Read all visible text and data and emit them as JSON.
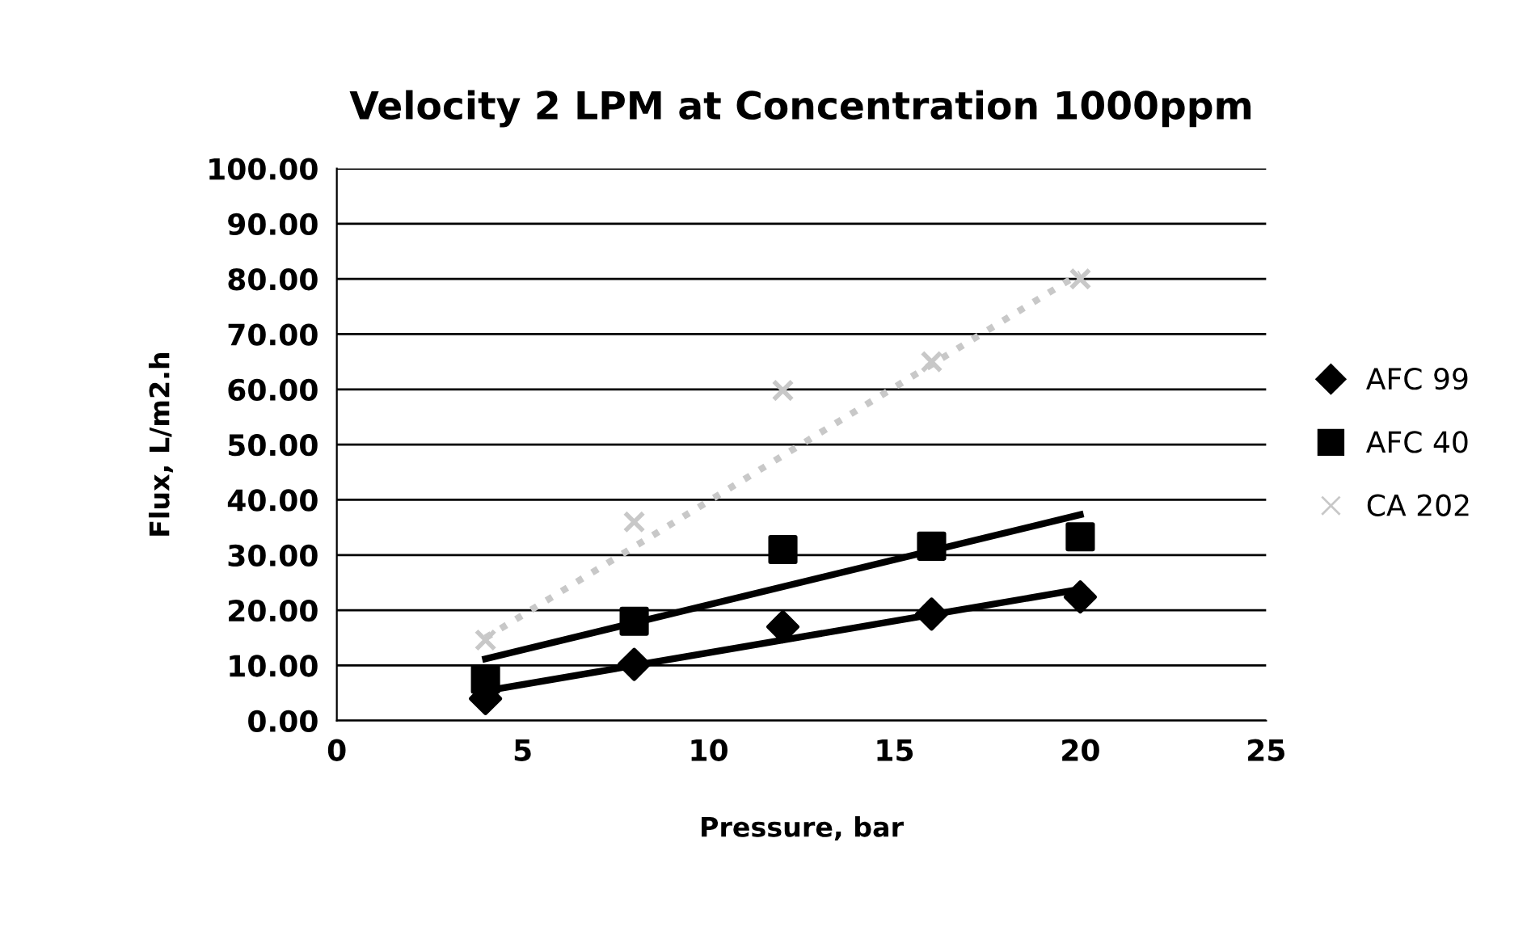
{
  "chart_data": {
    "type": "scatter",
    "title": "Velocity 2 LPM at Concentration 1000ppm",
    "xlabel": "Pressure, bar",
    "ylabel": "Flux, L/m2.h",
    "series": [
      {
        "name": "AFC 99",
        "color": "#000000",
        "marker": "diamond",
        "x": [
          4,
          8,
          12,
          16,
          20
        ],
        "values": [
          4,
          10.2,
          17,
          19.3,
          22.4
        ]
      },
      {
        "name": "AFC 40",
        "color": "#000000",
        "marker": "square",
        "x": [
          4,
          8,
          12,
          16,
          20
        ],
        "values": [
          7.5,
          18,
          31,
          31.6,
          33.3
        ]
      },
      {
        "name": "CA 202",
        "color": "#c8c8c8",
        "marker": "cross",
        "x": [
          4,
          8,
          12,
          16,
          20
        ],
        "values": [
          14.6,
          36,
          59.8,
          65,
          80
        ]
      },
      {
        "color": "#000000",
        "type": "line",
        "line_style": "solid",
        "x": [
          4,
          20
        ],
        "values": [
          5.4,
          23.8
        ]
      },
      {
        "color": "#000000",
        "type": "line",
        "line_style": "solid",
        "x": [
          4,
          20
        ],
        "values": [
          11.2,
          37.3
        ]
      },
      {
        "color": "#c8c8c8",
        "type": "line",
        "line_style": "dotted",
        "x": [
          4,
          20
        ],
        "values": [
          15,
          81
        ]
      }
    ],
    "xlim": [
      0,
      25
    ],
    "xticks": [
      0,
      5,
      10,
      15,
      20,
      25
    ],
    "ylim": [
      0,
      100
    ],
    "yticks": [
      {
        "value": 0,
        "label": "0.00"
      },
      {
        "value": 10,
        "label": "10.00"
      },
      {
        "value": 20,
        "label": "20.00"
      },
      {
        "value": 30,
        "label": "30.00"
      },
      {
        "value": 40,
        "label": "40.00"
      },
      {
        "value": 50,
        "label": "50.00"
      },
      {
        "value": 60,
        "label": "60.00"
      },
      {
        "value": 70,
        "label": "70.00"
      },
      {
        "value": 80,
        "label": "80.00"
      },
      {
        "value": 90,
        "label": "90.00"
      },
      {
        "value": 100,
        "label": "100.00"
      }
    ],
    "grid": "y",
    "legend": "right"
  }
}
